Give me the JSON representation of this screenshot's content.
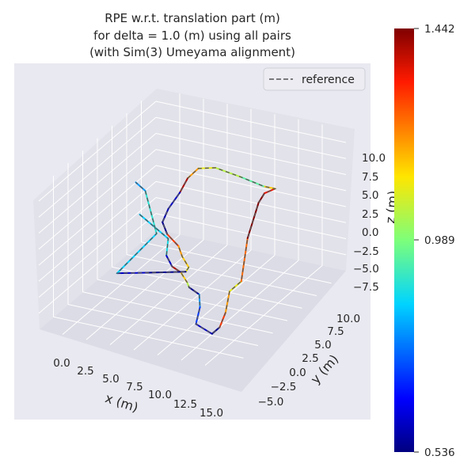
{
  "chart_data": {
    "type": "line3d",
    "title_lines": [
      "RPE w.r.t. translation part (m)",
      "for delta = 1.0 (m) using all pairs",
      "(with Sim(3) Umeyama alignment)"
    ],
    "xlabel": "x (m)",
    "ylabel": "y (m)",
    "zlabel": "z (m)",
    "x_ticks": [
      "0.0",
      "2.5",
      "5.0",
      "7.5",
      "10.0",
      "12.5",
      "15.0"
    ],
    "y_ticks": [
      "−5.0",
      "−2.5",
      "0.0",
      "2.5",
      "5.0",
      "7.5",
      "10.0"
    ],
    "z_ticks": [
      "10.0",
      "7.5",
      "5.0",
      "2.5",
      "0.0",
      "−2.5",
      "−5.0",
      "−7.5"
    ],
    "legend": {
      "entries": [
        "reference"
      ],
      "placement": "top-right",
      "line_style": "dashed",
      "line_color": "#555555"
    },
    "colorbar": {
      "colormap": "jet",
      "min_label": "0.536",
      "mid_label": "0.989",
      "max_label": "1.442",
      "min": 0.536,
      "mid": 0.989,
      "max": 1.442
    },
    "series": [
      {
        "points": [
          {
            "x": 3.5,
            "y": 0.0,
            "z": 4.0,
            "rpe": 0.85
          },
          {
            "x": 6.5,
            "y": 0.0,
            "z": 1.2,
            "rpe": 0.88
          },
          {
            "x": 6.0,
            "y": 0.5,
            "z": -2.0,
            "rpe": 0.6
          },
          {
            "x": 6.3,
            "y": 1.0,
            "z": -4.0,
            "rpe": 1.4
          },
          {
            "x": 7.2,
            "y": 1.0,
            "z": -4.6,
            "rpe": 1.15
          },
          {
            "x": 8.5,
            "y": 0.0,
            "z": -5.0,
            "rpe": 1.05
          },
          {
            "x": 9.0,
            "y": -0.5,
            "z": -5.2,
            "rpe": 0.55
          },
          {
            "x": 11.0,
            "y": -2.0,
            "z": -4.5,
            "rpe": 0.8
          },
          {
            "x": 12.0,
            "y": -3.5,
            "z": -5.0,
            "rpe": 0.7
          },
          {
            "x": 12.5,
            "y": -5.0,
            "z": -6.3,
            "rpe": 0.6
          },
          {
            "x": 14.5,
            "y": -5.5,
            "z": -6.8,
            "rpe": 0.55
          },
          {
            "x": 15.0,
            "y": -5.0,
            "z": -6.0,
            "rpe": 1.3
          },
          {
            "x": 15.0,
            "y": -4.0,
            "z": -4.5,
            "rpe": 1.2
          },
          {
            "x": 14.5,
            "y": -2.5,
            "z": -2.5,
            "rpe": 1.1
          },
          {
            "x": 14.5,
            "y": -0.5,
            "z": -2.5,
            "rpe": 1.25
          },
          {
            "x": 13.0,
            "y": 3.0,
            "z": 1.0,
            "rpe": 1.44
          },
          {
            "x": 12.0,
            "y": 6.5,
            "z": 3.5,
            "rpe": 1.44
          },
          {
            "x": 12.0,
            "y": 7.5,
            "z": 4.2,
            "rpe": 1.35
          },
          {
            "x": 12.5,
            "y": 8.5,
            "z": 4.3,
            "rpe": 1.15
          },
          {
            "x": 11.0,
            "y": 9.0,
            "z": 3.8,
            "rpe": 0.95
          },
          {
            "x": 8.0,
            "y": 10.0,
            "z": 3.5,
            "rpe": 1.05
          },
          {
            "x": 5.0,
            "y": 10.5,
            "z": 3.6,
            "rpe": 1.1
          },
          {
            "x": 3.5,
            "y": 10.0,
            "z": 3.4,
            "rpe": 1.2
          },
          {
            "x": 3.0,
            "y": 9.0,
            "z": 2.5,
            "rpe": 1.4
          },
          {
            "x": 2.8,
            "y": 8.0,
            "z": 1.0,
            "rpe": 0.6
          },
          {
            "x": 2.5,
            "y": 6.5,
            "z": -0.5,
            "rpe": 0.58
          },
          {
            "x": 2.5,
            "y": 5.5,
            "z": -1.8,
            "rpe": 0.55
          },
          {
            "x": 3.0,
            "y": 5.5,
            "z": -3.5,
            "rpe": 1.3
          },
          {
            "x": 4.5,
            "y": 5.0,
            "z": -4.5,
            "rpe": 1.2
          },
          {
            "x": 5.5,
            "y": 4.0,
            "z": -5.0,
            "rpe": 1.15
          },
          {
            "x": 6.5,
            "y": 3.5,
            "z": -6.0,
            "rpe": 1.1
          },
          {
            "x": 6.5,
            "y": 3.0,
            "z": -6.3,
            "rpe": 0.55
          },
          {
            "x": 3.0,
            "y": 2.0,
            "z": -6.8,
            "rpe": 0.6
          },
          {
            "x": 0.5,
            "y": 1.0,
            "z": -6.9,
            "rpe": 0.85
          },
          {
            "x": 2.5,
            "y": 4.5,
            "z": -2.8,
            "rpe": 0.9
          },
          {
            "x": 1.0,
            "y": 5.0,
            "z": 3.0,
            "rpe": 0.8
          },
          {
            "x": 0.0,
            "y": 5.0,
            "z": 4.0,
            "rpe": 0.85
          }
        ]
      }
    ]
  },
  "colors": {
    "panel_bg": "#e9e9f1",
    "pane_bg": "#e6e6ee",
    "grid": "#ffffff",
    "text": "#262626"
  }
}
